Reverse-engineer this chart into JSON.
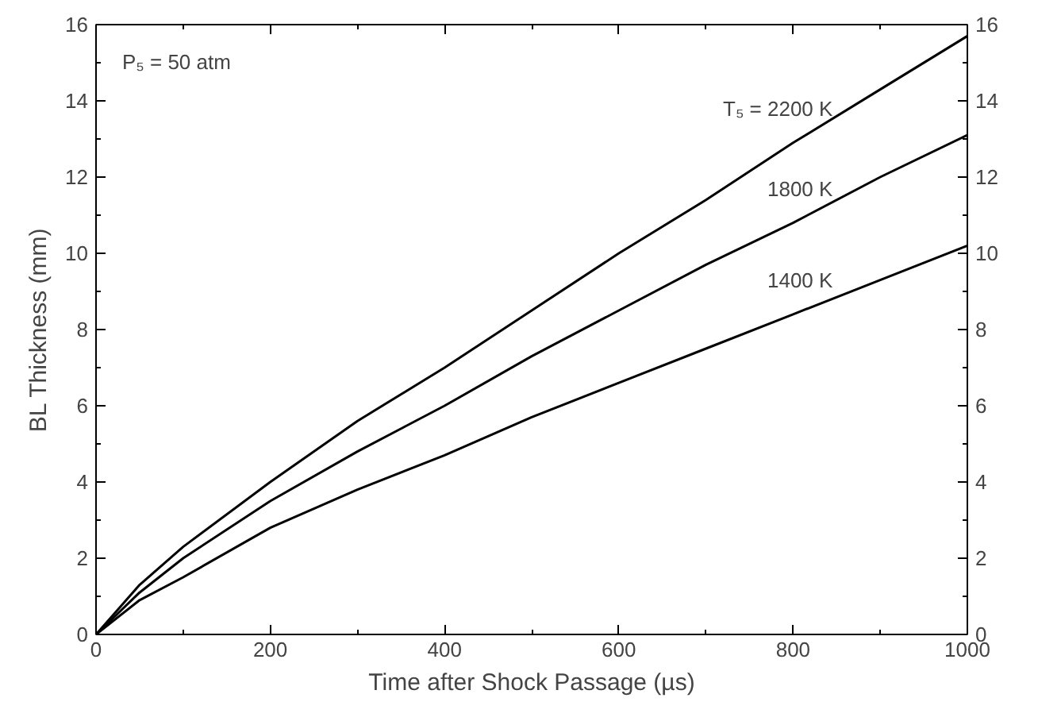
{
  "chart_data": {
    "type": "line",
    "xlabel": "Time after Shock Passage (µs)",
    "ylabel": "BL Thickness (mm)",
    "annotations": [
      "P₅ = 50 atm"
    ],
    "x": [
      0,
      50,
      100,
      200,
      300,
      400,
      500,
      600,
      700,
      800,
      900,
      1000
    ],
    "series": [
      {
        "name": "T₅ = 2200 K",
        "color": "#000000",
        "values": [
          0,
          1.3,
          2.3,
          4.0,
          5.6,
          7.0,
          8.5,
          10.0,
          11.4,
          12.9,
          14.3,
          15.7
        ]
      },
      {
        "name": "1800 K",
        "color": "#000000",
        "values": [
          0,
          1.1,
          2.0,
          3.5,
          4.8,
          6.0,
          7.3,
          8.5,
          9.7,
          10.8,
          12.0,
          13.1
        ]
      },
      {
        "name": "1400 K",
        "color": "#000000",
        "values": [
          0,
          0.9,
          1.5,
          2.8,
          3.8,
          4.7,
          5.7,
          6.6,
          7.5,
          8.4,
          9.3,
          10.2
        ]
      }
    ],
    "xlim": [
      0,
      1000
    ],
    "xticks": [
      0,
      200,
      400,
      600,
      800,
      1000
    ],
    "ylim": [
      0,
      16
    ],
    "yticks": [
      0,
      2,
      4,
      6,
      8,
      10,
      12,
      14,
      16
    ],
    "y2lim": [
      0,
      16
    ],
    "y2ticks": [
      0,
      2,
      4,
      6,
      8,
      10,
      12,
      14,
      16
    ],
    "grid": false,
    "marker": "none",
    "line_style": "solid"
  }
}
